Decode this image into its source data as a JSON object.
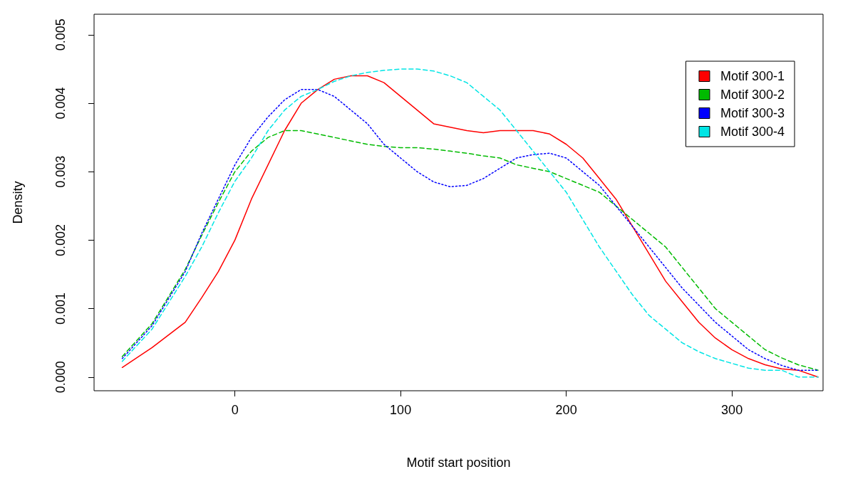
{
  "chart_data": {
    "type": "line",
    "xlabel": "Motif start position",
    "ylabel": "Density",
    "xlim": [
      -85,
      355
    ],
    "xticks": [
      0,
      100,
      200,
      300
    ],
    "ylim": [
      -0.0002,
      0.0053
    ],
    "yticks": [
      {
        "value": 0,
        "label": "0.000"
      },
      {
        "value": 0.001,
        "label": "0.001"
      },
      {
        "value": 0.002,
        "label": "0.002"
      },
      {
        "value": 0.003,
        "label": "0.003"
      },
      {
        "value": 0.004,
        "label": "0.004"
      },
      {
        "value": 0.005,
        "label": "0.005"
      }
    ],
    "legend": "top right",
    "grid": false,
    "marker": "none",
    "x": [
      -68,
      -50,
      -30,
      -20,
      -10,
      0,
      10,
      20,
      30,
      40,
      50,
      60,
      70,
      80,
      90,
      100,
      110,
      120,
      130,
      140,
      150,
      160,
      170,
      180,
      190,
      200,
      210,
      220,
      230,
      240,
      250,
      260,
      270,
      280,
      290,
      300,
      310,
      320,
      330,
      340,
      352
    ],
    "series": [
      {
        "name": "Motif 300-1",
        "color": "#ff0000",
        "line_style": "solid",
        "values": [
          0.00014,
          0.00043,
          0.0008,
          0.00116,
          0.00154,
          0.002,
          0.0026,
          0.0031,
          0.0036,
          0.004,
          0.0042,
          0.00435,
          0.0044,
          0.0044,
          0.0043,
          0.0041,
          0.0039,
          0.0037,
          0.00365,
          0.0036,
          0.00357,
          0.0036,
          0.0036,
          0.0036,
          0.00355,
          0.0034,
          0.0032,
          0.0029,
          0.0026,
          0.0022,
          0.0018,
          0.0014,
          0.0011,
          0.0008,
          0.00057,
          0.0004,
          0.00027,
          0.00018,
          0.00012,
          0.0001,
          0
        ]
      },
      {
        "name": "Motif 300-2",
        "color": "#00bb00",
        "line_style": "dashed",
        "values": [
          0.0003,
          0.00078,
          0.00157,
          0.00207,
          0.00255,
          0.003,
          0.0033,
          0.0035,
          0.0036,
          0.0036,
          0.00355,
          0.0035,
          0.00345,
          0.0034,
          0.00337,
          0.00335,
          0.00335,
          0.00333,
          0.0033,
          0.00327,
          0.00323,
          0.0032,
          0.0031,
          0.00305,
          0.003,
          0.0029,
          0.0028,
          0.0027,
          0.0025,
          0.0023,
          0.0021,
          0.0019,
          0.0016,
          0.0013,
          0.001,
          0.0008,
          0.0006,
          0.0004,
          0.00028,
          0.00018,
          0.0001
        ]
      },
      {
        "name": "Motif 300-3",
        "color": "#0000ff",
        "line_style": "dotted",
        "values": [
          0.00027,
          0.00075,
          0.00154,
          0.0021,
          0.0026,
          0.0031,
          0.0035,
          0.0038,
          0.00405,
          0.0042,
          0.0042,
          0.0041,
          0.0039,
          0.0037,
          0.0034,
          0.0032,
          0.003,
          0.00285,
          0.00278,
          0.0028,
          0.0029,
          0.00305,
          0.0032,
          0.00325,
          0.00327,
          0.0032,
          0.003,
          0.0028,
          0.0025,
          0.0022,
          0.0019,
          0.0016,
          0.0013,
          0.00105,
          0.0008,
          0.0006,
          0.0004,
          0.00027,
          0.00017,
          0.0001,
          0.0001
        ]
      },
      {
        "name": "Motif 300-4",
        "color": "#00e5e5",
        "line_style": "dashed",
        "values": [
          0.00023,
          0.0007,
          0.00147,
          0.0019,
          0.0024,
          0.00286,
          0.0032,
          0.0036,
          0.0039,
          0.0041,
          0.0042,
          0.00432,
          0.0044,
          0.00445,
          0.00448,
          0.0045,
          0.0045,
          0.00447,
          0.0044,
          0.0043,
          0.0041,
          0.0039,
          0.0036,
          0.0033,
          0.003,
          0.0027,
          0.0023,
          0.0019,
          0.00155,
          0.0012,
          0.0009,
          0.0007,
          0.0005,
          0.00037,
          0.00027,
          0.0002,
          0.00013,
          0.0001,
          0.0001,
          0,
          0
        ]
      }
    ]
  }
}
